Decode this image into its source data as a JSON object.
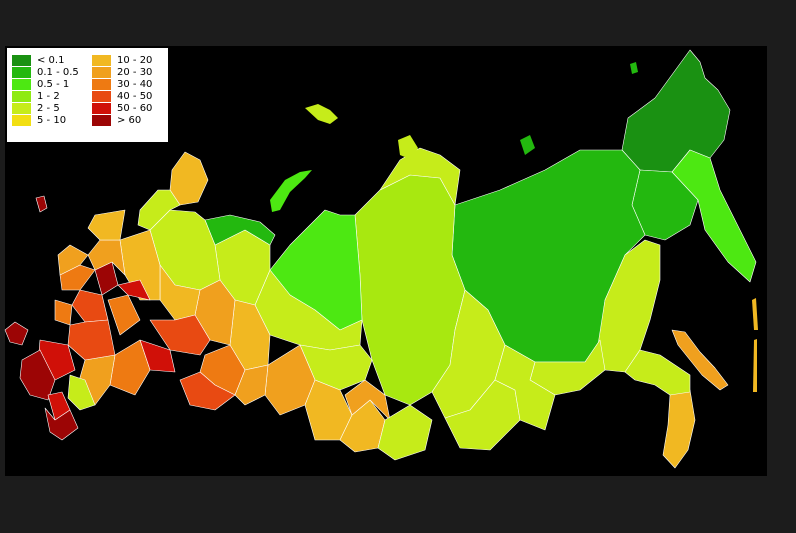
{
  "legend": {
    "items": [
      {
        "label": "< 0.1",
        "color": "#1a9112"
      },
      {
        "label": "0.1 - 0.5",
        "color": "#23b80f"
      },
      {
        "label": "0.5 - 1",
        "color": "#4de812"
      },
      {
        "label": "1 - 2",
        "color": "#8fea12"
      },
      {
        "label": "2 - 5",
        "color": "#c6ec1a"
      },
      {
        "label": "5 - 10",
        "color": "#f2df12"
      },
      {
        "label": "10 - 20",
        "color": "#f1b822"
      },
      {
        "label": "20 - 30",
        "color": "#f0a01e"
      },
      {
        "label": "30 - 40",
        "color": "#ee7a12"
      },
      {
        "label": "40 - 50",
        "color": "#e84a12"
      },
      {
        "label": "50 - 60",
        "color": "#d01008"
      },
      {
        "label": "> 60",
        "color": "#9c0505"
      }
    ]
  },
  "colors": {
    "background": "#1c1c1c",
    "map_background": "#000000",
    "region_border": "#ffffff"
  }
}
